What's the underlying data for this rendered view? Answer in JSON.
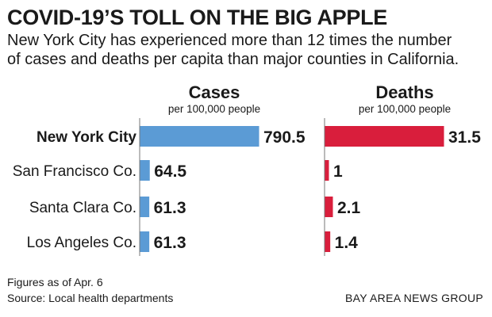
{
  "title": "COVID-19’S TOLL ON THE BIG APPLE",
  "subtitle": "New York City has experienced more than 12 times the number\nof cases and deaths per capita than major counties in California.",
  "footer": {
    "note": "Figures as of Apr. 6",
    "source": "Source: Local health departments",
    "credit": "BAY AREA NEWS GROUP"
  },
  "colors": {
    "cases": "#5b9bd5",
    "deaths": "#d91e3c",
    "text": "#1a1a1a",
    "axis": "#777777"
  },
  "chart_data": [
    {
      "type": "bar",
      "orientation": "horizontal",
      "title": "Cases",
      "subtitle": "per 100,000 people",
      "categories": [
        "New York City",
        "San Francisco Co.",
        "Santa Clara Co.",
        "Los Angeles Co."
      ],
      "values": [
        790.5,
        64.5,
        61.3,
        61.3
      ],
      "value_labels": [
        "790.5",
        "64.5",
        "61.3",
        "61.3"
      ],
      "highlight": "New York City",
      "color": "#5b9bd5"
    },
    {
      "type": "bar",
      "orientation": "horizontal",
      "title": "Deaths",
      "subtitle": "per 100,000 people",
      "categories": [
        "New York City",
        "San Francisco Co.",
        "Santa Clara Co.",
        "Los Angeles Co."
      ],
      "values": [
        31.5,
        1,
        2.1,
        1.4
      ],
      "value_labels": [
        "31.5",
        "1",
        "2.1",
        "1.4"
      ],
      "highlight": "New York City",
      "color": "#d91e3c"
    }
  ]
}
